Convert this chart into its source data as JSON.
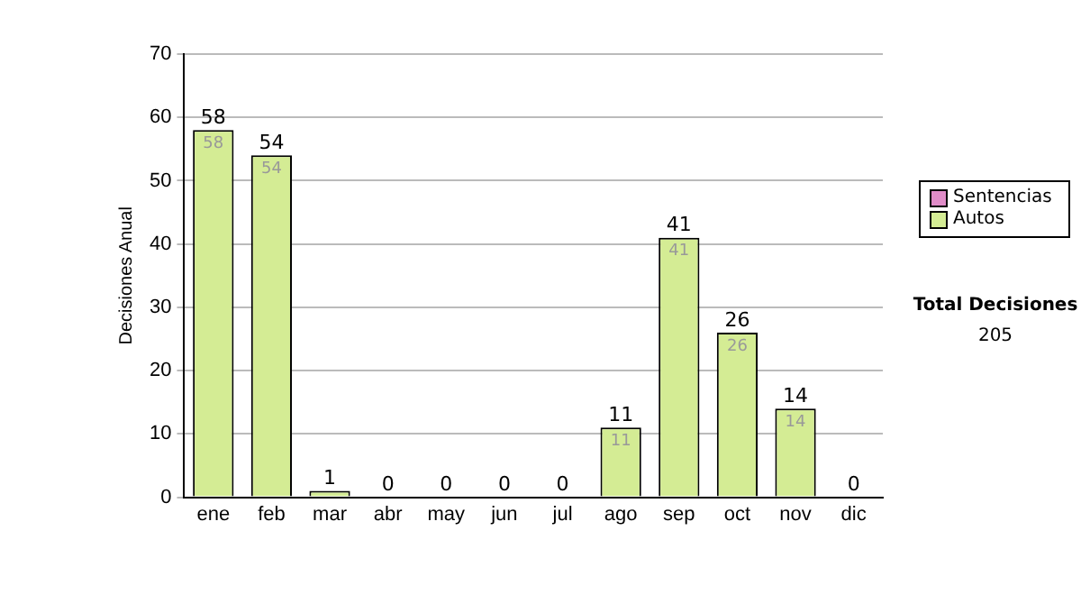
{
  "chart_data": {
    "type": "bar",
    "stacked": true,
    "ylabel": "Decisiones Anual",
    "categories": [
      "ene",
      "feb",
      "mar",
      "abr",
      "may",
      "jun",
      "jul",
      "ago",
      "sep",
      "oct",
      "nov",
      "dic"
    ],
    "series": [
      {
        "name": "Sentencias",
        "color": "#e08cc8",
        "values": [
          0,
          0,
          0,
          0,
          0,
          0,
          0,
          0,
          0,
          0,
          0,
          0
        ]
      },
      {
        "name": "Autos",
        "color": "#d4ec94",
        "values": [
          58,
          54,
          1,
          0,
          0,
          0,
          0,
          11,
          41,
          26,
          14,
          0
        ],
        "value_labels": [
          "58",
          "54",
          null,
          null,
          null,
          null,
          null,
          "11",
          "41",
          "26",
          "14",
          null
        ]
      }
    ],
    "totals": [
      "58",
      "54",
      "1",
      "0",
      "0",
      "0",
      "0",
      "11",
      "41",
      "26",
      "14",
      "0"
    ],
    "ylim": [
      0,
      70
    ],
    "yticks": [
      0,
      10,
      20,
      30,
      40,
      50,
      60,
      70
    ],
    "grid": "y",
    "legend": "right",
    "annotations": [
      "Total Decisiones",
      "205"
    ]
  }
}
